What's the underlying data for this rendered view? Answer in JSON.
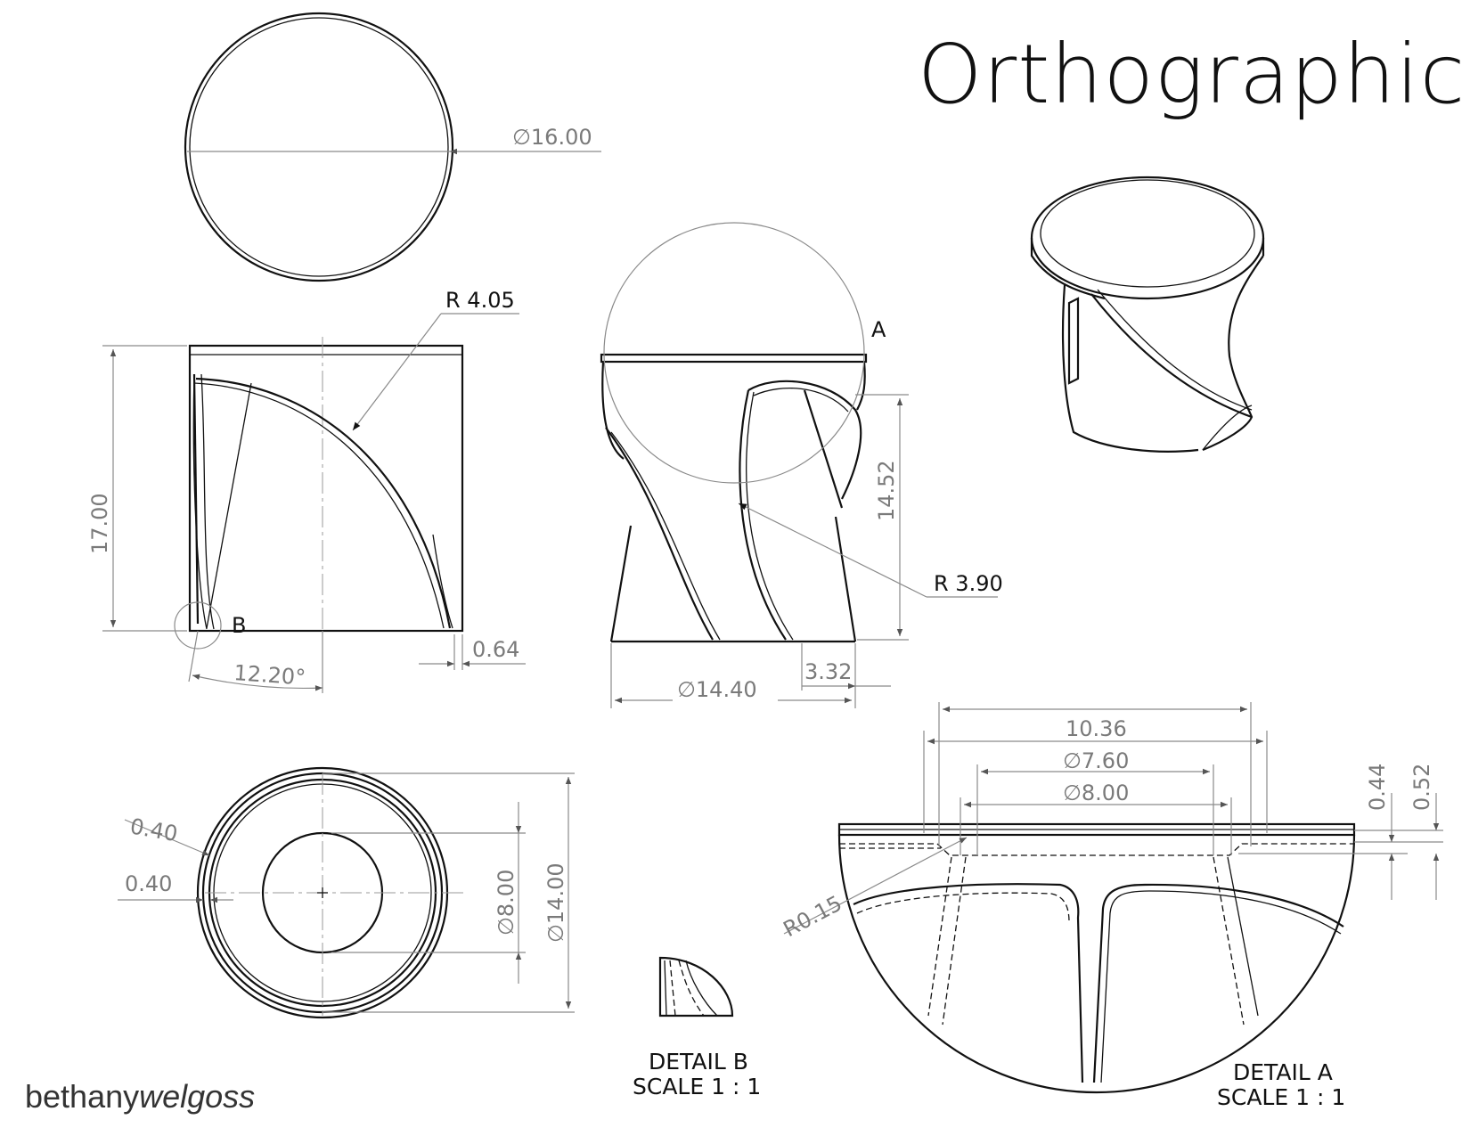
{
  "title": "Orthographic",
  "brand": {
    "first": "bethany",
    "second": "welgoss"
  },
  "dims": {
    "top_dia": "∅16.00",
    "r_front": "R 4.05",
    "height": "17.00",
    "angle": "12.20°",
    "rim": "0.64",
    "label_b": "B",
    "label_a": "A",
    "h_side": "14.52",
    "r_side": "R 3.90",
    "base_dia": "∅14.40",
    "offset": "3.32",
    "wall_top": "0.40",
    "wall_side": "0.40",
    "inner_dia": "∅8.00",
    "outer_dia": "∅14.00",
    "a_w1": "10.36",
    "a_w2": "∅7.60",
    "a_w3": "∅8.00",
    "a_h1": "0.44",
    "a_h2": "0.52",
    "a_r": "R0.15"
  },
  "details": {
    "b_name": "DETAIL B",
    "b_scale": "SCALE 1 : 1",
    "a_name": "DETAIL A",
    "a_scale": "SCALE 1 : 1"
  }
}
